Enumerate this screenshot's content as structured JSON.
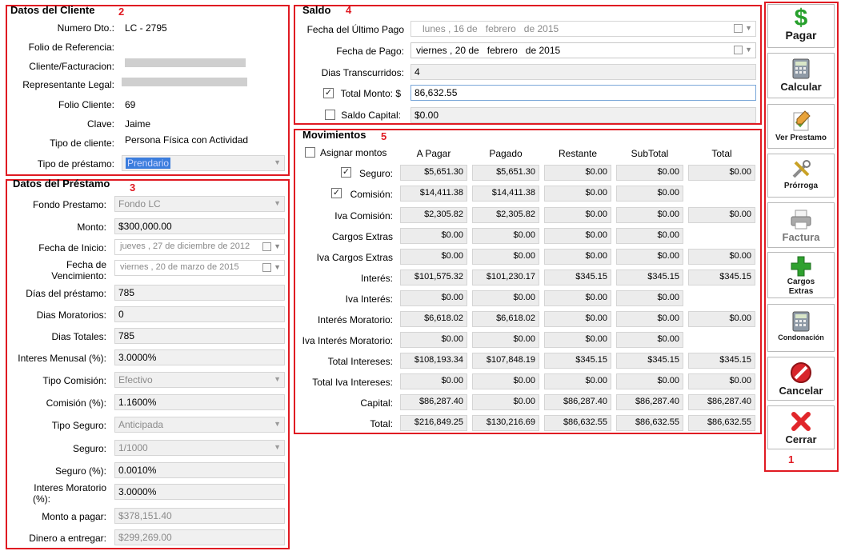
{
  "annotations": {
    "buttons": "1",
    "cliente": "2",
    "prestamo": "3",
    "saldo": "4",
    "movimientos": "5"
  },
  "cliente": {
    "title": "Datos del Cliente",
    "numero_label": "Numero Dto.:",
    "numero_value": "LC - 2795",
    "folio_ref_label": "Folio de Referencia:",
    "cliente_label": "Cliente/Facturacion:",
    "representante_label": "Representante Legal:",
    "folio_cliente_label": "Folio Cliente:",
    "folio_cliente_value": "69",
    "clave_label": "Clave:",
    "clave_value": "Jaime",
    "tipo_cliente_label": "Tipo de cliente:",
    "tipo_cliente_value": "Persona Física con Actividad",
    "tipo_prestamo_label": "Tipo de préstamo:",
    "tipo_prestamo_value": "Prendario"
  },
  "prestamo": {
    "title": "Datos del Préstamo",
    "fondo_label": "Fondo Prestamo:",
    "fondo_value": "Fondo LC",
    "monto_label": "Monto:",
    "monto_value": "$300,000.00",
    "inicio_label": "Fecha de Inicio:",
    "inicio_day": "jueves",
    "inicio_date": ", 27 de",
    "inicio_month": "diciembre",
    "inicio_year": "de 2012",
    "venc_label_1": "Fecha de",
    "venc_label_2": "Vencimiento:",
    "venc_day": "viernes",
    "venc_date": ", 20 de",
    "venc_month": "marzo",
    "venc_year": "de 2015",
    "dias_prestamo_label": "Días del préstamo:",
    "dias_prestamo_value": "785",
    "dias_mora_label": "Dias Moratorios:",
    "dias_mora_value": "0",
    "dias_totales_label": "Dias Totales:",
    "dias_totales_value": "785",
    "interes_label": "Interes Menusal (%):",
    "interes_value": "3.0000%",
    "tipo_comision_label": "Tipo Comisión:",
    "tipo_comision_value": "Efectivo",
    "comision_label": "Comisión (%):",
    "comision_value": "1.1600%",
    "tipo_seguro_label": "Tipo Seguro:",
    "tipo_seguro_value": "Anticipada",
    "seguro_label": "Seguro:",
    "seguro_value": "1/1000",
    "seguro_pct_label": "Seguro (%):",
    "seguro_pct_value": "0.0010%",
    "int_mora_label_1": "Interes Moratorio",
    "int_mora_label_2": "(%):",
    "int_mora_value": "3.0000%",
    "monto_pagar_label": "Monto a pagar:",
    "monto_pagar_value": "$378,151.40",
    "dinero_label": "Dinero a entregar:",
    "dinero_value": "$299,269.00"
  },
  "saldo": {
    "title": "Saldo",
    "ultimo_label": "Fecha del Último Pago",
    "ultimo_day": "lunes",
    "ultimo_date": ", 16 de",
    "ultimo_month": "febrero",
    "ultimo_year": "de 2015",
    "pago_label": "Fecha de Pago:",
    "pago_day": "viernes",
    "pago_date": ", 20 de",
    "pago_month": "febrero",
    "pago_year": "de 2015",
    "dias_label": "Dias Transcurridos:",
    "dias_value": "4",
    "total_label": "Total Monto: $",
    "total_value": "86,632.55",
    "capital_label": "Saldo Capital:",
    "capital_value": "$0.00"
  },
  "movimientos": {
    "title": "Movimientos",
    "asignar_label": "Asignar montos",
    "headers": [
      "A Pagar",
      "Pagado",
      "Restante",
      "SubTotal",
      "Total"
    ],
    "rows": [
      {
        "label": "Seguro:",
        "check": true,
        "cells": [
          "$5,651.30",
          "$5,651.30",
          "$0.00",
          "$0.00",
          "$0.00"
        ]
      },
      {
        "label": "Comisión:",
        "check": true,
        "cells": [
          "$14,411.38",
          "$14,411.38",
          "$0.00",
          "$0.00",
          ""
        ]
      },
      {
        "label": "Iva Comisión:",
        "check": false,
        "cells": [
          "$2,305.82",
          "$2,305.82",
          "$0.00",
          "$0.00",
          "$0.00"
        ]
      },
      {
        "label": "Cargos Extras",
        "check": false,
        "cells": [
          "$0.00",
          "$0.00",
          "$0.00",
          "$0.00",
          ""
        ]
      },
      {
        "label": "Iva Cargos Extras",
        "check": false,
        "cells": [
          "$0.00",
          "$0.00",
          "$0.00",
          "$0.00",
          "$0.00"
        ]
      },
      {
        "label": "Interés:",
        "check": false,
        "cells": [
          "$101,575.32",
          "$101,230.17",
          "$345.15",
          "$345.15",
          "$345.15"
        ]
      },
      {
        "label": "Iva Interés:",
        "check": false,
        "cells": [
          "$0.00",
          "$0.00",
          "$0.00",
          "$0.00",
          ""
        ]
      },
      {
        "label": "Interés Moratorio:",
        "check": false,
        "cells": [
          "$6,618.02",
          "$6,618.02",
          "$0.00",
          "$0.00",
          "$0.00"
        ]
      },
      {
        "label": "Iva Interés Moratorio:",
        "check": false,
        "cells": [
          "$0.00",
          "$0.00",
          "$0.00",
          "$0.00",
          ""
        ]
      },
      {
        "label": "Total Intereses:",
        "check": false,
        "cells": [
          "$108,193.34",
          "$107,848.19",
          "$345.15",
          "$345.15",
          "$345.15"
        ]
      },
      {
        "label": "Total Iva Intereses:",
        "check": false,
        "cells": [
          "$0.00",
          "$0.00",
          "$0.00",
          "$0.00",
          "$0.00"
        ]
      },
      {
        "label": "Capital:",
        "check": false,
        "cells": [
          "$86,287.40",
          "$0.00",
          "$86,287.40",
          "$86,287.40",
          "$86,287.40"
        ]
      },
      {
        "label": "Total:",
        "check": false,
        "cells": [
          "$216,849.25",
          "$130,216.69",
          "$86,632.55",
          "$86,632.55",
          "$86,632.55"
        ]
      }
    ]
  },
  "buttons": {
    "pagar": "Pagar",
    "calcular": "Calcular",
    "ver_prestamo": "Ver Prestamo",
    "prorroga": "Prórroga",
    "factura": "Factura",
    "cargos_1": "Cargos",
    "cargos_2": "Extras",
    "condonacion": "Condonación",
    "cancelar": "Cancelar",
    "cerrar": "Cerrar"
  },
  "colors": {
    "annotation": "#e01a22",
    "selection": "#3b7ddd"
  }
}
